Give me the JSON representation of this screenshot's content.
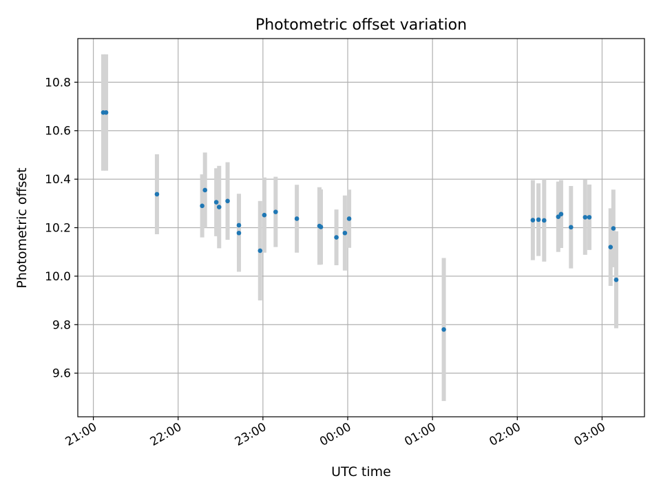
{
  "chart_data": {
    "type": "scatter",
    "title": "Photometric offset variation",
    "xlabel": "UTC time",
    "ylabel": "Photometric offset",
    "x_unit": "UTC time (HH:MM), values after 00:00 fall on the following night",
    "x_ticks": [
      "21:00",
      "22:00",
      "23:00",
      "00:00",
      "01:00",
      "02:00",
      "03:00"
    ],
    "y_ticks": [
      "9.6",
      "9.8",
      "10.0",
      "10.2",
      "10.4",
      "10.6",
      "10.8"
    ],
    "ylim": [
      9.42,
      10.98
    ],
    "xlim": [
      "20:49",
      "27:30"
    ],
    "grid": true,
    "colors": {
      "point": "#1f77b4",
      "errorbar": "#d3d3d3",
      "grid": "#b0b0b0"
    },
    "points": [
      {
        "t": "21:07",
        "y": 10.675,
        "err": 0.24
      },
      {
        "t": "21:09",
        "y": 10.675,
        "err": 0.24
      },
      {
        "t": "21:45",
        "y": 10.338,
        "err": 0.165
      },
      {
        "t": "22:17",
        "y": 10.29,
        "err": 0.13
      },
      {
        "t": "22:19",
        "y": 10.355,
        "err": 0.155
      },
      {
        "t": "22:27",
        "y": 10.305,
        "err": 0.14
      },
      {
        "t": "22:29",
        "y": 10.285,
        "err": 0.17
      },
      {
        "t": "22:35",
        "y": 10.31,
        "err": 0.16
      },
      {
        "t": "22:43",
        "y": 10.178,
        "err": 0.16
      },
      {
        "t": "22:43",
        "y": 10.21,
        "err": 0.13
      },
      {
        "t": "22:58",
        "y": 10.105,
        "err": 0.205
      },
      {
        "t": "23:01",
        "y": 10.252,
        "err": 0.155
      },
      {
        "t": "23:09",
        "y": 10.265,
        "err": 0.145
      },
      {
        "t": "23:24",
        "y": 10.237,
        "err": 0.14
      },
      {
        "t": "23:40",
        "y": 10.207,
        "err": 0.16
      },
      {
        "t": "23:41",
        "y": 10.203,
        "err": 0.155
      },
      {
        "t": "23:52",
        "y": 10.16,
        "err": 0.115
      },
      {
        "t": "23:58",
        "y": 10.178,
        "err": 0.155
      },
      {
        "t": "00:01",
        "y": 10.237,
        "err": 0.12
      },
      {
        "t": "01:08",
        "y": 9.78,
        "err": 0.295
      },
      {
        "t": "02:11",
        "y": 10.231,
        "err": 0.165
      },
      {
        "t": "02:15",
        "y": 10.233,
        "err": 0.15
      },
      {
        "t": "02:19",
        "y": 10.23,
        "err": 0.17
      },
      {
        "t": "02:29",
        "y": 10.245,
        "err": 0.145
      },
      {
        "t": "02:31",
        "y": 10.256,
        "err": 0.14
      },
      {
        "t": "02:38",
        "y": 10.202,
        "err": 0.17
      },
      {
        "t": "02:48",
        "y": 10.243,
        "err": 0.155
      },
      {
        "t": "02:51",
        "y": 10.243,
        "err": 0.135
      },
      {
        "t": "03:06",
        "y": 10.12,
        "err": 0.16
      },
      {
        "t": "03:08",
        "y": 10.197,
        "err": 0.16
      },
      {
        "t": "03:10",
        "y": 9.985,
        "err": 0.2
      }
    ]
  }
}
